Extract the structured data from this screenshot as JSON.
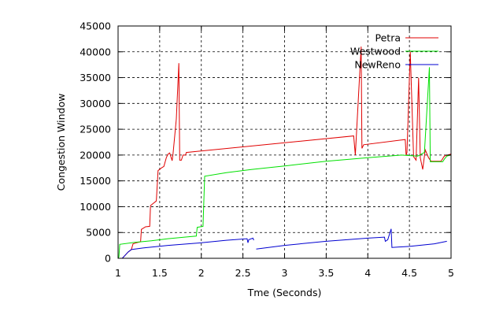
{
  "chart_data": {
    "type": "line",
    "xlabel": "Tme (Seconds)",
    "ylabel": "Congestion Window",
    "xlim": [
      1,
      5
    ],
    "ylim": [
      0,
      45000
    ],
    "x_ticks": [
      1,
      1.5,
      2,
      2.5,
      3,
      3.5,
      4,
      4.5,
      5
    ],
    "x_tick_labels": [
      "1",
      "1.5",
      "2",
      "2.5",
      "3",
      "3.5",
      "4",
      "4.5",
      "5"
    ],
    "y_ticks": [
      0,
      5000,
      10000,
      15000,
      20000,
      25000,
      30000,
      35000,
      40000,
      45000
    ],
    "y_tick_labels": [
      "0",
      "5000",
      "10000",
      "15000",
      "20000",
      "25000",
      "30000",
      "35000",
      "40000",
      "45000"
    ],
    "grid": true,
    "legend_position": "top-right",
    "series": [
      {
        "name": "Petra",
        "color": "#e00000",
        "points": [
          [
            1.0,
            0
          ],
          [
            1.05,
            0
          ],
          [
            1.08,
            500
          ],
          [
            1.12,
            1200
          ],
          [
            1.16,
            1700
          ],
          [
            1.18,
            2800
          ],
          [
            1.22,
            3000
          ],
          [
            1.27,
            3200
          ],
          [
            1.28,
            5600
          ],
          [
            1.33,
            6100
          ],
          [
            1.38,
            6200
          ],
          [
            1.39,
            10200
          ],
          [
            1.42,
            10600
          ],
          [
            1.46,
            11100
          ],
          [
            1.48,
            17000
          ],
          [
            1.52,
            17500
          ],
          [
            1.55,
            17800
          ],
          [
            1.58,
            19500
          ],
          [
            1.6,
            20200
          ],
          [
            1.62,
            20400
          ],
          [
            1.65,
            18900
          ],
          [
            1.66,
            20200
          ],
          [
            1.7,
            27000
          ],
          [
            1.73,
            37800
          ],
          [
            1.74,
            19000
          ],
          [
            1.76,
            19000
          ],
          [
            1.78,
            20000
          ],
          [
            1.81,
            20000
          ],
          [
            1.82,
            20500
          ],
          [
            3.83,
            23700
          ],
          [
            3.85,
            20000
          ],
          [
            3.92,
            41000
          ],
          [
            3.93,
            21300
          ],
          [
            3.95,
            22000
          ],
          [
            4.45,
            23000
          ],
          [
            4.46,
            20000
          ],
          [
            4.47,
            20500
          ],
          [
            4.51,
            40000
          ],
          [
            4.55,
            19700
          ],
          [
            4.58,
            19000
          ],
          [
            4.61,
            35000
          ],
          [
            4.63,
            19500
          ],
          [
            4.66,
            17200
          ],
          [
            4.69,
            21000
          ],
          [
            4.73,
            19500
          ],
          [
            4.76,
            18800
          ],
          [
            4.88,
            18800
          ],
          [
            4.92,
            19800
          ],
          [
            5.0,
            20200
          ]
        ]
      },
      {
        "name": "Westwood",
        "color": "#00e000",
        "points": [
          [
            1.0,
            0
          ],
          [
            1.01,
            300
          ],
          [
            1.02,
            2700
          ],
          [
            1.2,
            3100
          ],
          [
            1.4,
            3400
          ],
          [
            1.6,
            3800
          ],
          [
            1.8,
            4100
          ],
          [
            1.94,
            4300
          ],
          [
            1.95,
            6000
          ],
          [
            2.02,
            6200
          ],
          [
            2.04,
            15900
          ],
          [
            2.3,
            16600
          ],
          [
            2.6,
            17200
          ],
          [
            3.0,
            17900
          ],
          [
            3.5,
            18800
          ],
          [
            4.0,
            19500
          ],
          [
            4.4,
            20000
          ],
          [
            4.6,
            19800
          ],
          [
            4.68,
            20500
          ],
          [
            4.74,
            37000
          ],
          [
            4.75,
            18700
          ],
          [
            4.9,
            18700
          ],
          [
            4.92,
            19200
          ],
          [
            4.95,
            19800
          ],
          [
            5.0,
            20000
          ]
        ]
      },
      {
        "name": "NewReno",
        "color": "#0000d0",
        "points": [
          [
            1.0,
            0
          ],
          [
            1.05,
            0
          ],
          [
            1.08,
            500
          ],
          [
            1.12,
            1200
          ],
          [
            1.16,
            1700
          ],
          [
            1.3,
            2000
          ],
          [
            1.6,
            2500
          ],
          [
            2.0,
            3000
          ],
          [
            2.3,
            3500
          ],
          [
            2.55,
            3800
          ],
          [
            2.56,
            3000
          ],
          [
            2.57,
            3600
          ],
          [
            2.62,
            3900
          ],
          [
            2.63,
            3500
          ],
          [
            2.63,
            null
          ],
          [
            2.66,
            1800
          ],
          [
            3.0,
            2500
          ],
          [
            3.5,
            3300
          ],
          [
            4.0,
            3900
          ],
          [
            4.2,
            4100
          ],
          [
            4.21,
            3300
          ],
          [
            4.24,
            3600
          ],
          [
            4.28,
            5700
          ],
          [
            4.29,
            2100
          ],
          [
            4.5,
            2300
          ],
          [
            4.8,
            2800
          ],
          [
            4.95,
            3300
          ]
        ]
      }
    ]
  }
}
